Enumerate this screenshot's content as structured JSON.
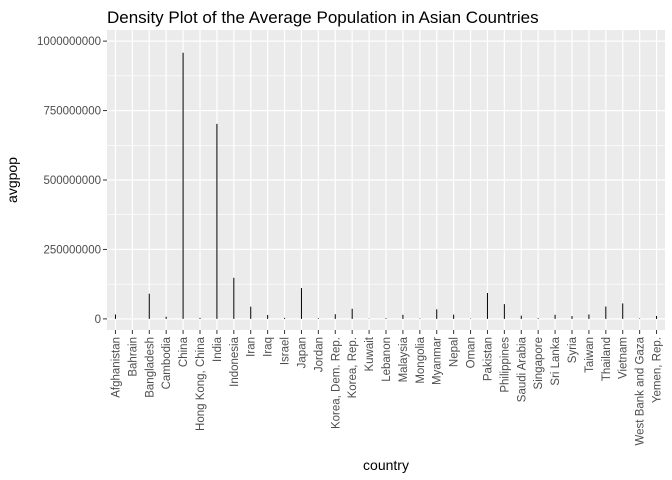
{
  "chart_data": {
    "type": "bar",
    "title": "Density Plot of the Average Population in Asian Countries",
    "xlabel": "country",
    "ylabel": "avgpop",
    "ylim": [
      -40000000,
      1040000000
    ],
    "yticks": [
      0,
      250000000,
      500000000,
      750000000,
      1000000000
    ],
    "ytick_labels": [
      "0",
      "250000000",
      "500000000",
      "750000000",
      "1000000000"
    ],
    "grid": true,
    "colors": {
      "panel": "#ebebeb",
      "grid": "#ffffff",
      "bar": "#000000",
      "tick_text": "#4d4d4d"
    },
    "categories": [
      "Afghanistan",
      "Bahrain",
      "Bangladesh",
      "Cambodia",
      "China",
      "Hong Kong, China",
      "India",
      "Indonesia",
      "Iran",
      "Iraq",
      "Israel",
      "Japan",
      "Jordan",
      "Korea, Dem. Rep.",
      "Korea, Rep.",
      "Kuwait",
      "Lebanon",
      "Malaysia",
      "Mongolia",
      "Myanmar",
      "Nepal",
      "Oman",
      "Pakistan",
      "Philippines",
      "Saudi Arabia",
      "Singapore",
      "Sri Lanka",
      "Syria",
      "Taiwan",
      "Thailand",
      "Vietnam",
      "West Bank and Gaza",
      "Yemen, Rep."
    ],
    "values": [
      15800000,
      370000,
      90800000,
      7700000,
      958000000,
      3700000,
      702000000,
      148000000,
      44000000,
      14000000,
      3600000,
      111000000,
      2500000,
      16800000,
      36500000,
      1200000,
      2700000,
      14700000,
      1700000,
      34500000,
      15300000,
      1340000,
      93200000,
      53200000,
      11700000,
      2500000,
      14800000,
      9900000,
      15900000,
      44500000,
      55700000,
      1900000,
      10500000
    ]
  }
}
